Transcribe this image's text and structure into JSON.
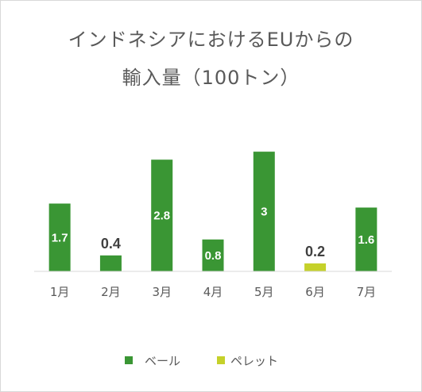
{
  "chart_data": {
    "type": "bar",
    "title_line1": "インドネシアにおけるEUからの",
    "title_line2": "輸入量（100トン）",
    "categories": [
      "1月",
      "2月",
      "3月",
      "4月",
      "5月",
      "6月",
      "7月"
    ],
    "series": [
      {
        "name": "ベール",
        "color": "#3a9634",
        "values": [
          1.7,
          0.4,
          2.8,
          0.8,
          3,
          null,
          1.6
        ]
      },
      {
        "name": "ペレット",
        "color": "#c5d12a",
        "values": [
          null,
          null,
          null,
          null,
          null,
          0.2,
          null
        ]
      }
    ],
    "data_labels": [
      "1.7",
      "0.4",
      "2.8",
      "0.8",
      "3",
      "0.2",
      "1.6"
    ],
    "ylim": [
      0,
      3.5
    ],
    "grid": false,
    "legend_position": "bottom"
  }
}
